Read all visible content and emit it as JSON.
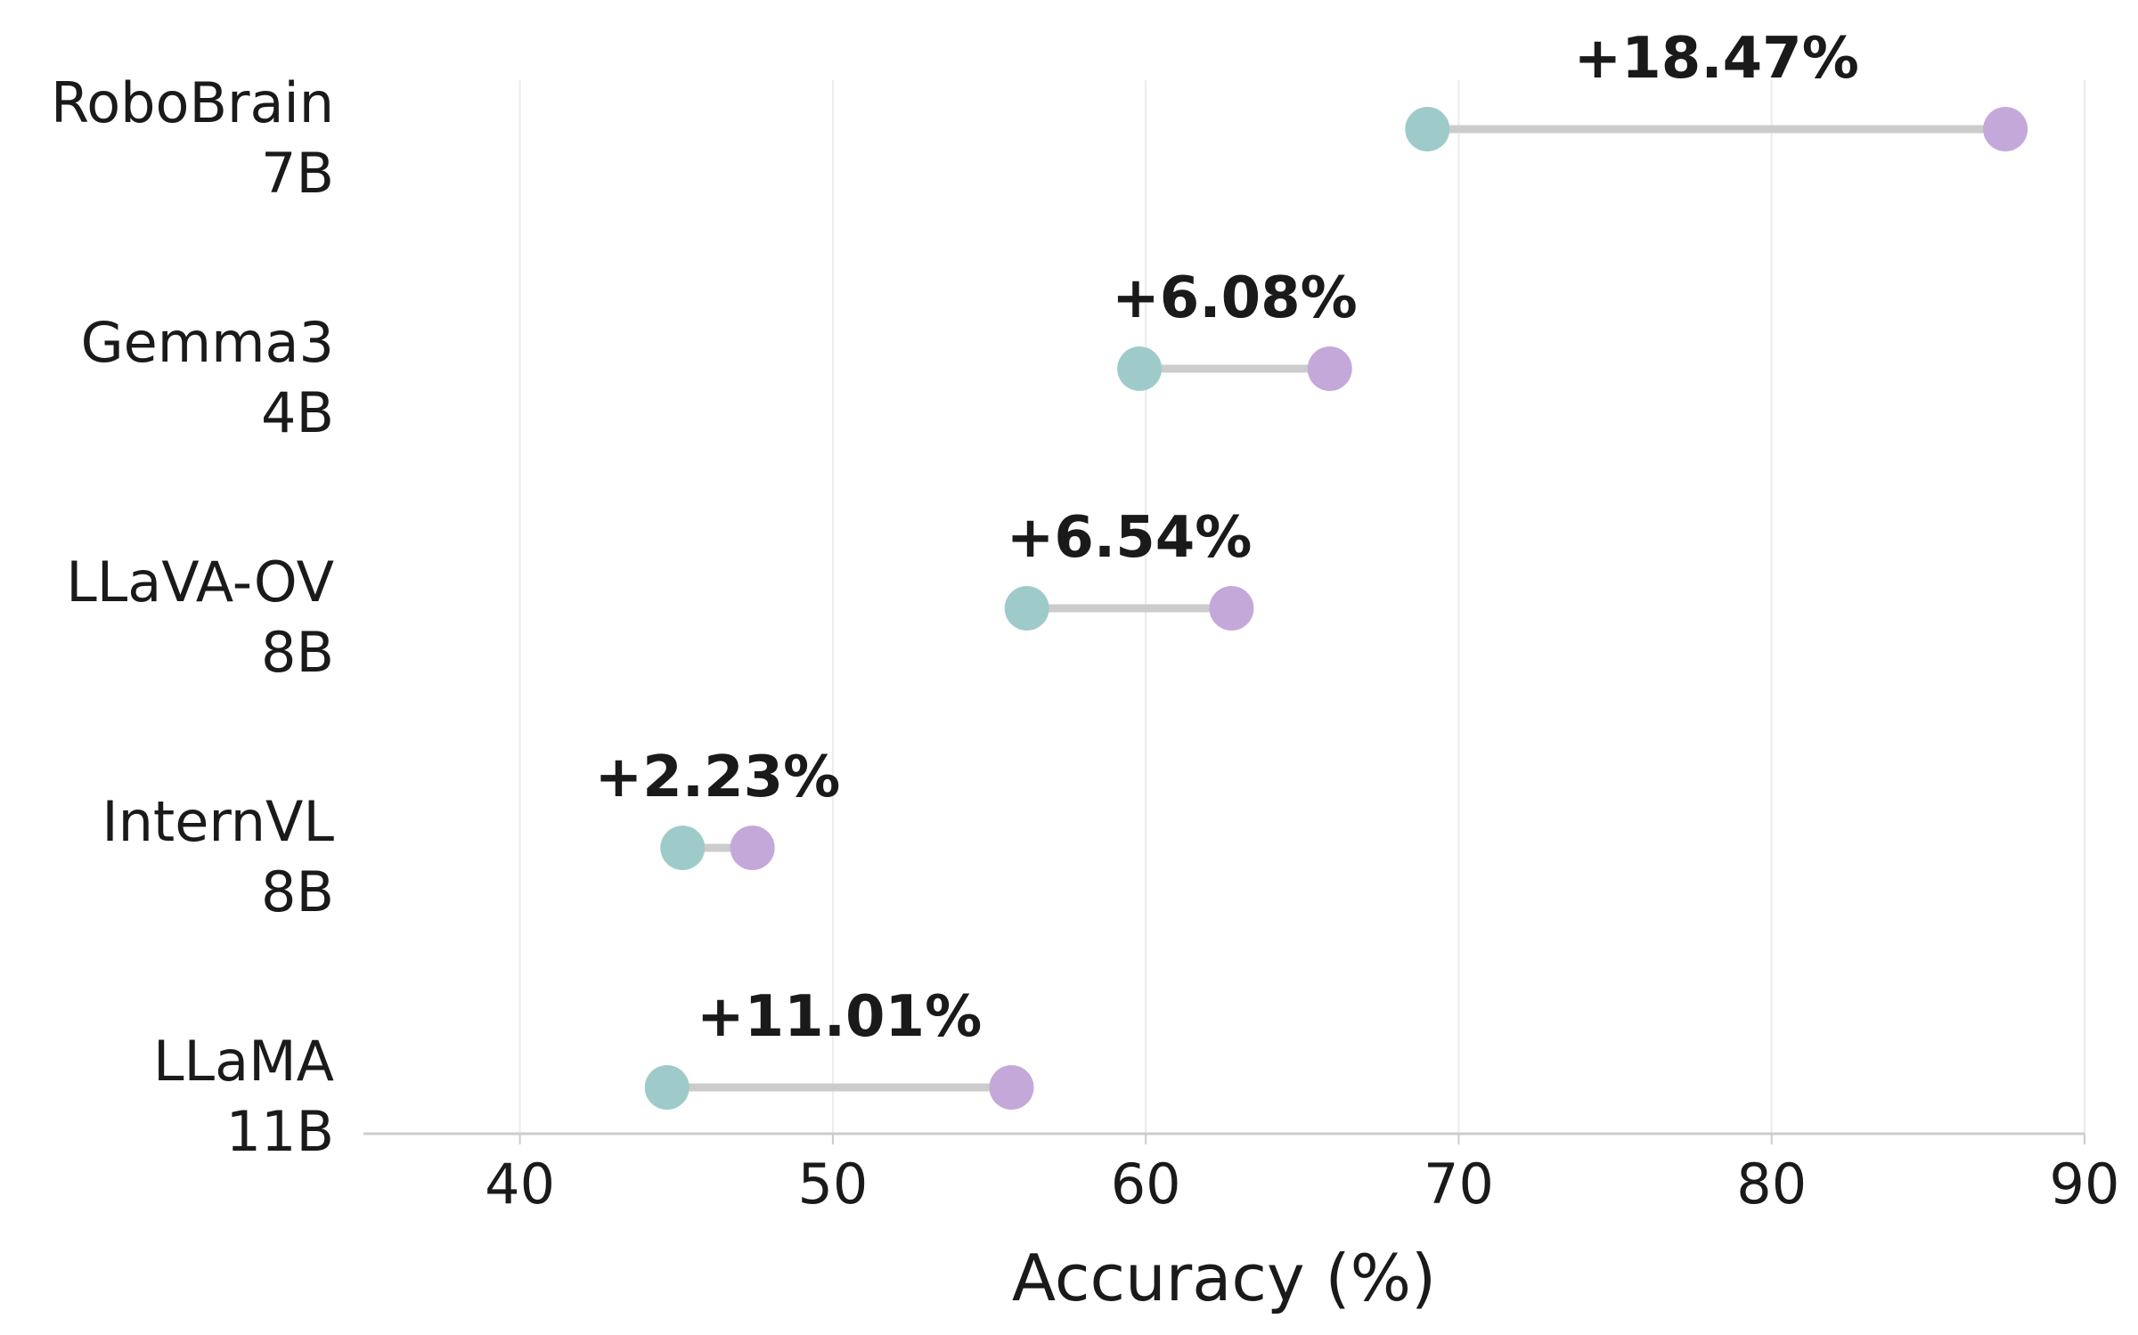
{
  "chart_data": {
    "type": "dumbbell",
    "xlabel": "Accuracy (%)",
    "xlim": [
      35,
      90
    ],
    "xticks": [
      40,
      50,
      60,
      70,
      80,
      90
    ],
    "grid": "vertical",
    "models": [
      {
        "name": "RoboBrain",
        "size": "7B",
        "start": 69.0,
        "end": 87.47,
        "delta_label": "+18.47%"
      },
      {
        "name": "Gemma3",
        "size": "4B",
        "start": 59.8,
        "end": 65.88,
        "delta_label": "+6.08%"
      },
      {
        "name": "LLaVA-OV",
        "size": "8B",
        "start": 56.2,
        "end": 62.74,
        "delta_label": "+6.54%"
      },
      {
        "name": "InternVL",
        "size": "8B",
        "start": 45.2,
        "end": 47.43,
        "delta_label": "+2.23%"
      },
      {
        "name": "LLaMA",
        "size": "11B",
        "start": 44.7,
        "end": 55.71,
        "delta_label": "+11.01%"
      }
    ],
    "colors": {
      "start": "#9ecbc9",
      "end": "#c4a8da",
      "connector": "#cccccc",
      "grid": "#ebebeb",
      "axis": "#cccccc"
    }
  }
}
